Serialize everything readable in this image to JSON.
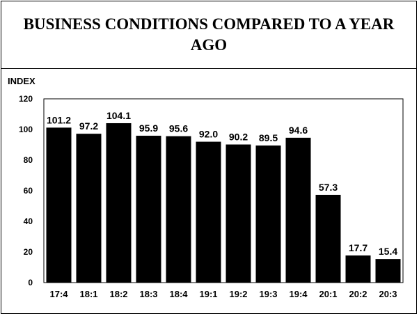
{
  "chart_data": {
    "type": "bar",
    "title": "BUSINESS CONDITIONS COMPARED TO A YEAR AGO",
    "ylabel": "INDEX",
    "xlabel": "",
    "categories": [
      "17:4",
      "18:1",
      "18:2",
      "18:3",
      "18:4",
      "19:1",
      "19:2",
      "19:3",
      "19:4",
      "20:1",
      "20:2",
      "20:3"
    ],
    "values": [
      101.2,
      97.2,
      104.1,
      95.9,
      95.6,
      92.0,
      90.2,
      89.5,
      94.6,
      57.3,
      17.7,
      15.4
    ],
    "value_labels": [
      "101.2",
      "97.2",
      "104.1",
      "95.9",
      "95.6",
      "92.0",
      "90.2",
      "89.5",
      "94.6",
      "57.3",
      "17.7",
      "15.4"
    ],
    "yticks": [
      "0",
      "20",
      "40",
      "60",
      "80",
      "100",
      "120"
    ],
    "ylim": [
      0,
      120
    ],
    "grid": false,
    "legend": "none",
    "bar_color": "#000000"
  }
}
